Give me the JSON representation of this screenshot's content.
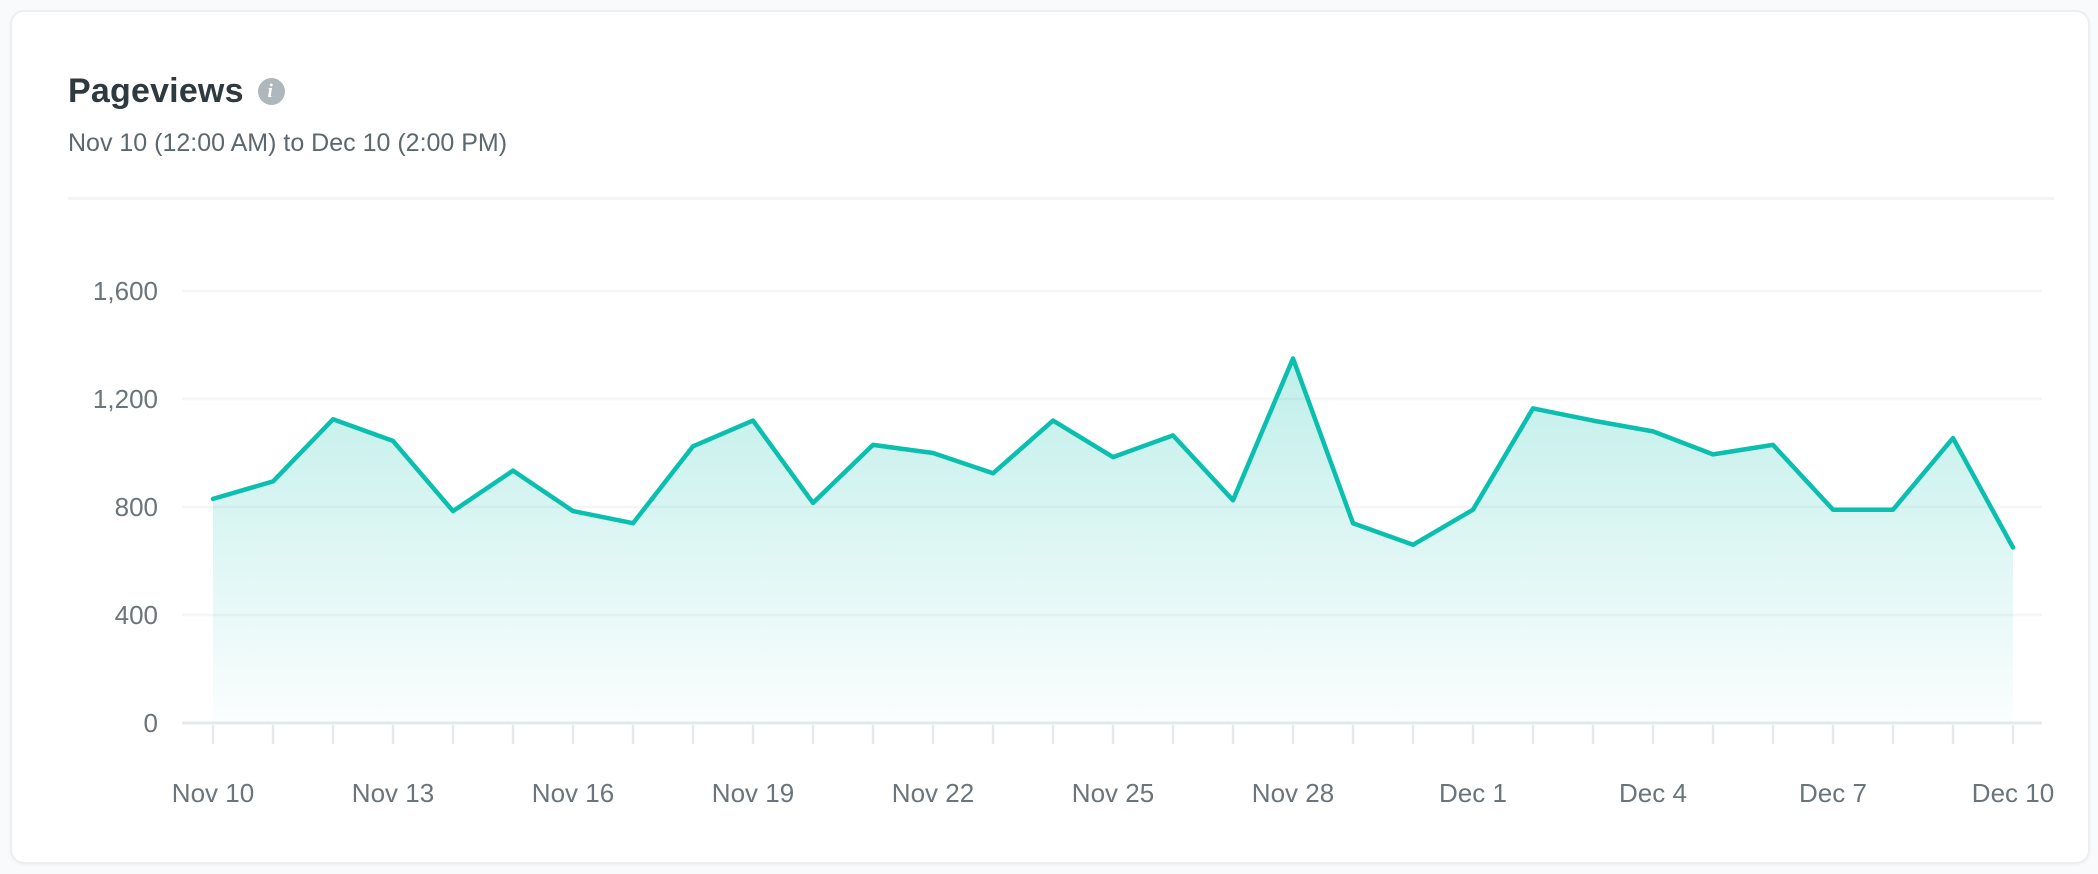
{
  "header": {
    "title": "Pageviews",
    "date_range": "Nov 10 (12:00 AM) to Dec 10 (2:00 PM)"
  },
  "icons": {
    "info_glyph": "i"
  },
  "colors": {
    "accent_teal": "#0abfae",
    "title_text": "#2f3a40",
    "subtitle_text": "#5d686e",
    "axis_text": "#6a747b",
    "gridline": "#f3f5f6",
    "axis_line": "#e6e9eb"
  },
  "chart_data": {
    "type": "area",
    "title": "Pageviews",
    "x": [
      "Nov 10",
      "Nov 11",
      "Nov 12",
      "Nov 13",
      "Nov 14",
      "Nov 15",
      "Nov 16",
      "Nov 17",
      "Nov 18",
      "Nov 19",
      "Nov 20",
      "Nov 21",
      "Nov 22",
      "Nov 23",
      "Nov 24",
      "Nov 25",
      "Nov 26",
      "Nov 27",
      "Nov 28",
      "Nov 29",
      "Nov 30",
      "Dec 1",
      "Dec 2",
      "Dec 3",
      "Dec 4",
      "Dec 5",
      "Dec 6",
      "Dec 7",
      "Dec 8",
      "Dec 9",
      "Dec 10"
    ],
    "values": [
      830,
      895,
      1125,
      1045,
      785,
      935,
      785,
      740,
      1025,
      1120,
      815,
      1030,
      1000,
      925,
      1120,
      985,
      1065,
      825,
      1350,
      740,
      660,
      790,
      1165,
      1120,
      1080,
      995,
      1030,
      790,
      790,
      1055,
      650
    ],
    "x_label_every": 3,
    "x_tick_labels": [
      "Nov 10",
      "Nov 13",
      "Nov 16",
      "Nov 19",
      "Nov 22",
      "Nov 25",
      "Nov 28",
      "Dec 1",
      "Dec 4",
      "Dec 7",
      "Dec 10"
    ],
    "y_ticks": [
      0,
      400,
      800,
      1200,
      1600
    ],
    "y_tick_labels": [
      "0",
      "400",
      "800",
      "1,200",
      "1,600"
    ],
    "ylim": [
      0,
      1600
    ],
    "xlabel": "",
    "ylabel": "",
    "grid": "horizontal",
    "legend": "none",
    "line_color": "#0abfae",
    "fill_color_top": "rgba(10,191,174,0.30)",
    "fill_color_bottom": "rgba(10,191,174,0.02)"
  }
}
